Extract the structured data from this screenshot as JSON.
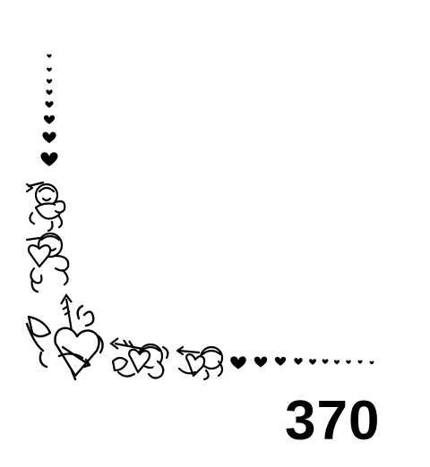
{
  "page": {
    "number": "370"
  },
  "decoration": {
    "description_icons": [
      "heart-icon",
      "cupid-icon",
      "arrow-heart-icon"
    ],
    "ink_color": "#000000",
    "paper_color": "#ffffff"
  }
}
